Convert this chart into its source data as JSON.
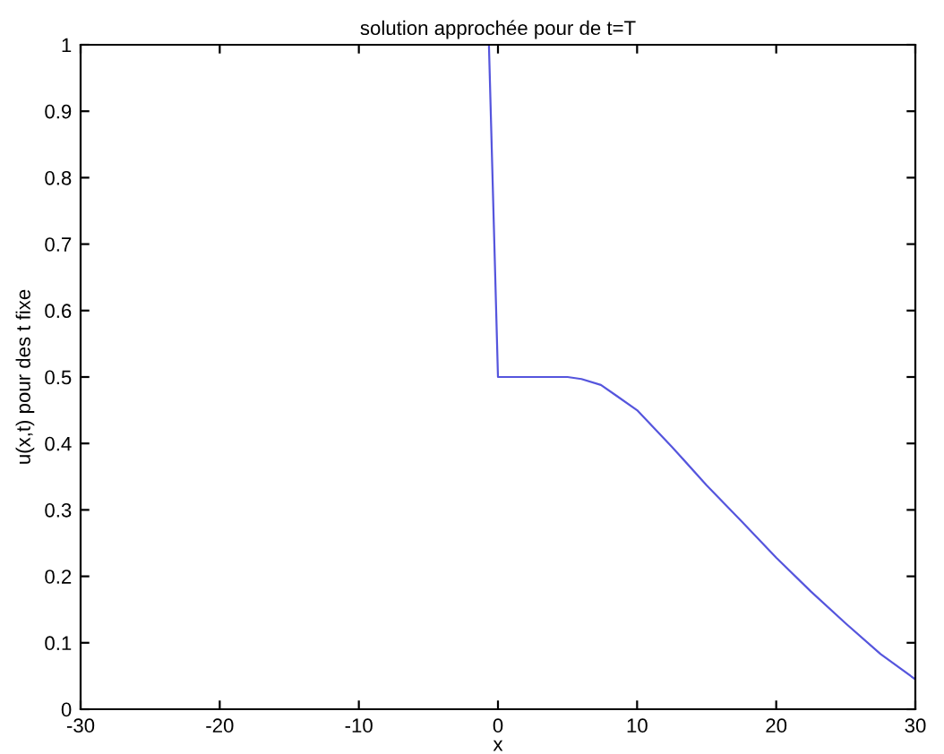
{
  "chart_data": {
    "type": "line",
    "title": "solution approchée pour de t=T",
    "xlabel": "x",
    "ylabel": "u(x,t) pour des t fixe",
    "x": [
      -0.65,
      0,
      5,
      6,
      7.4,
      8.5,
      10,
      12.5,
      15,
      17.5,
      20,
      22.5,
      25,
      27.5,
      30
    ],
    "series": [
      {
        "color": "#5555dd",
        "values": [
          1.0,
          0.5,
          0.5,
          0.497,
          0.488,
          0.472,
          0.45,
          0.395,
          0.337,
          0.283,
          0.228,
          0.177,
          0.129,
          0.083,
          0.045
        ]
      }
    ],
    "xlim": [
      -30,
      30
    ],
    "ylim": [
      0,
      1
    ],
    "xticks": [
      -30,
      -20,
      -10,
      0,
      10,
      20,
      30
    ],
    "yticks": [
      0,
      0.1,
      0.2,
      0.3,
      0.4,
      0.5,
      0.6,
      0.7,
      0.8,
      0.9,
      1
    ],
    "grid": false,
    "legend": false
  }
}
